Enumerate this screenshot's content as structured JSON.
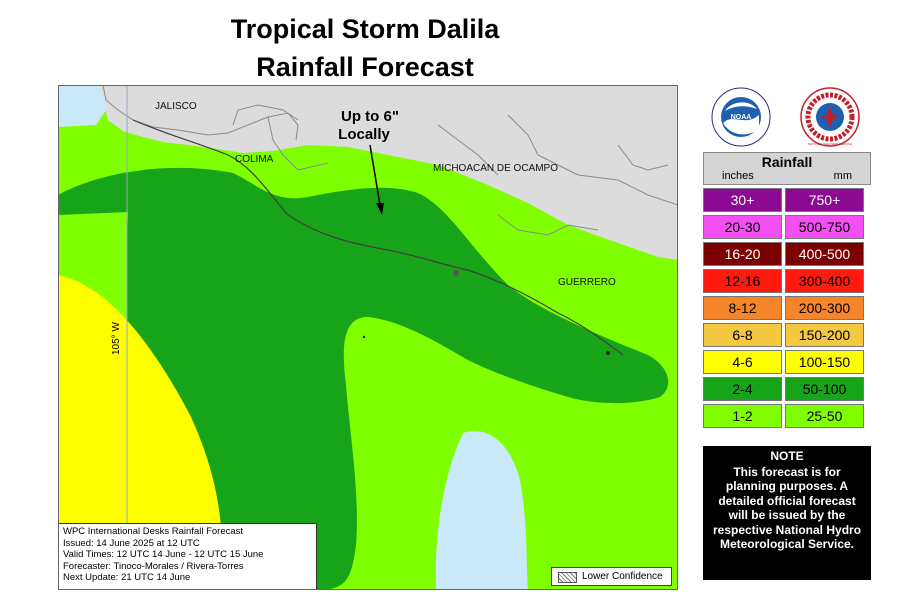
{
  "title": {
    "line1": "Tropical Storm Dalila",
    "line2": "Rainfall Forecast"
  },
  "map": {
    "regions": {
      "jalisco": "JALISCO",
      "colima": "COLIMA",
      "michoacan": "MICHOACAN DE OCAMPO",
      "guerrero": "GUERRERO"
    },
    "callout": {
      "line1": "Up to 6\"",
      "line2": "Locally"
    },
    "longitude_label": "105° W",
    "colors": {
      "ocean": "#c9e9f8",
      "land": "#dcdcdc",
      "rain_1_2": "#80ff00",
      "rain_2_4": "#18a418",
      "rain_4_6": "#ffff00"
    }
  },
  "info_box": {
    "lines": [
      "WPC International Desks Rainfall Forecast",
      "Issued: 14 June 2025 at 12 UTC",
      "Valid Times: 12 UTC 14 June - 12 UTC 15 June",
      "Forecaster: Tinoco-Morales / Rivera-Torres",
      "Next Update: 21 UTC 14 June"
    ]
  },
  "lower_confidence": "Lower Confidence",
  "logos": {
    "noaa": "NOAA",
    "nws": "NATIONAL WEATHER SERVICE"
  },
  "legend": {
    "title": "Rainfall",
    "unit_left": "inches",
    "unit_right": "mm",
    "rows": [
      {
        "inches": "30+",
        "mm": "750+",
        "color": "#8b0a91",
        "text_color": "#ffffff"
      },
      {
        "inches": "20-30",
        "mm": "500-750",
        "color": "#f34ff4",
        "text_color": "#000000"
      },
      {
        "inches": "16-20",
        "mm": "400-500",
        "color": "#7d0000",
        "text_color": "#ffffff"
      },
      {
        "inches": "12-16",
        "mm": "300-400",
        "color": "#ff1a0f",
        "text_color": "#000000"
      },
      {
        "inches": "8-12",
        "mm": "200-300",
        "color": "#f4852a",
        "text_color": "#000000"
      },
      {
        "inches": "6-8",
        "mm": "150-200",
        "color": "#f5c842",
        "text_color": "#000000"
      },
      {
        "inches": "4-6",
        "mm": "100-150",
        "color": "#ffff00",
        "text_color": "#000000"
      },
      {
        "inches": "2-4",
        "mm": "50-100",
        "color": "#18a418",
        "text_color": "#000000"
      },
      {
        "inches": "1-2",
        "mm": "25-50",
        "color": "#80ff00",
        "text_color": "#000000"
      }
    ]
  },
  "note": {
    "title": "NOTE",
    "text": "This forecast is for planning purposes. A detailed official forecast will be issued by the respective National Hydro Meteorological Service."
  }
}
